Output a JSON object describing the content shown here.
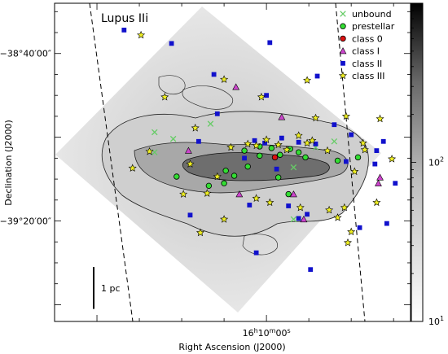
{
  "chart_data": {
    "type": "scatter",
    "title": "Lupus IIi",
    "xlabel": "Right Ascension (J2000)",
    "ylabel": "Declination (J2000)",
    "x_ticks": [
      {
        "label": "16h10m00s",
        "ra_min": 10.0
      }
    ],
    "y_ticks": [
      {
        "label": "−38°40′00″",
        "dec_arcmin": -40
      },
      {
        "label": "−39°20′00″",
        "dec_arcmin": -80
      }
    ],
    "xlim_ra_min": [
      11.25,
      9.15
    ],
    "ylim_dec_arcmin": [
      -104,
      -28
    ],
    "colorbar": {
      "scale": "log",
      "range": [
        10,
        1000
      ],
      "ticks": [
        {
          "label": "10",
          "exp": "1",
          "value": 10
        },
        {
          "label": "10",
          "exp": "2",
          "value": 100
        }
      ],
      "colormap": "gray_reversed"
    },
    "scale_bar": {
      "label": "1 pc",
      "dec_arcmin_start": -91,
      "dec_arcmin_end": -101
    },
    "legend_position": "top-right",
    "series": [
      {
        "name": "unbound",
        "marker": "x",
        "color": "#66cc66",
        "points": [
          [
            10.66,
            -58.8
          ],
          [
            10.55,
            -60.4
          ],
          [
            10.33,
            -56.8
          ],
          [
            10.66,
            -63.6
          ],
          [
            9.84,
            -67.2
          ],
          [
            9.71,
            -62.4
          ],
          [
            9.84,
            -79.6
          ],
          [
            9.6,
            -61.0
          ]
        ]
      },
      {
        "name": "prestellar",
        "marker": "circle",
        "color": "#33dd33",
        "points": [
          [
            10.13,
            -63.2
          ],
          [
            10.04,
            -62.2
          ],
          [
            9.97,
            -62.6
          ],
          [
            9.92,
            -64.2
          ],
          [
            9.86,
            -62.8
          ],
          [
            9.81,
            -63.6
          ],
          [
            9.77,
            -64.8
          ],
          [
            10.04,
            -64.4
          ],
          [
            10.11,
            -67.0
          ],
          [
            10.24,
            -68.0
          ],
          [
            10.19,
            -69.2
          ],
          [
            10.25,
            -71.0
          ],
          [
            10.34,
            -71.6
          ],
          [
            10.53,
            -69.4
          ],
          [
            9.58,
            -65.6
          ],
          [
            9.46,
            -64.8
          ],
          [
            9.93,
            -69.6
          ],
          [
            9.87,
            -73.6
          ]
        ]
      },
      {
        "name": "class 0",
        "marker": "circle",
        "color": "#dd1111",
        "points": [
          [
            9.95,
            -64.8
          ]
        ]
      },
      {
        "name": "class I",
        "marker": "triangle",
        "color": "#cc44cc",
        "points": [
          [
            10.18,
            -48.0
          ],
          [
            10.46,
            -63.2
          ],
          [
            10.16,
            -73.6
          ],
          [
            9.84,
            -73.6
          ],
          [
            9.78,
            -79.6
          ],
          [
            9.33,
            -69.6
          ],
          [
            9.34,
            -71.0
          ],
          [
            9.91,
            -55.2
          ]
        ]
      },
      {
        "name": "class II",
        "marker": "square",
        "color": "#1111cc",
        "points": [
          [
            10.84,
            -34.4
          ],
          [
            10.56,
            -37.6
          ],
          [
            10.31,
            -45.0
          ],
          [
            9.98,
            -37.4
          ],
          [
            9.7,
            -45.4
          ],
          [
            10.29,
            -54.4
          ],
          [
            10.0,
            -50.0
          ],
          [
            10.4,
            -61.0
          ],
          [
            10.13,
            -65.0
          ],
          [
            10.07,
            -60.8
          ],
          [
            10.01,
            -61.4
          ],
          [
            9.91,
            -60.2
          ],
          [
            9.81,
            -61.2
          ],
          [
            9.71,
            -61.6
          ],
          [
            9.94,
            -67.6
          ],
          [
            9.6,
            -57.0
          ],
          [
            9.5,
            -59.4
          ],
          [
            9.31,
            -61.0
          ],
          [
            9.35,
            -63.2
          ],
          [
            9.53,
            -65.8
          ],
          [
            9.36,
            -66.4
          ],
          [
            9.87,
            -76.4
          ],
          [
            9.76,
            -78.4
          ],
          [
            9.81,
            -79.4
          ],
          [
            10.45,
            -78.6
          ],
          [
            10.1,
            -76.2
          ],
          [
            10.06,
            -87.6
          ],
          [
            9.74,
            -91.6
          ],
          [
            9.29,
            -80.6
          ],
          [
            9.24,
            -71.0
          ],
          [
            9.45,
            -81.6
          ]
        ]
      },
      {
        "name": "class III",
        "marker": "star",
        "color": "#eeee22",
        "points": [
          [
            10.74,
            -35.6
          ],
          [
            10.25,
            -46.2
          ],
          [
            10.03,
            -50.4
          ],
          [
            9.76,
            -46.4
          ],
          [
            10.6,
            -50.4
          ],
          [
            10.42,
            -57.8
          ],
          [
            10.69,
            -63.4
          ],
          [
            10.79,
            -67.4
          ],
          [
            10.45,
            -66.4
          ],
          [
            10.29,
            -69.4
          ],
          [
            10.21,
            -62.4
          ],
          [
            10.11,
            -61.6
          ],
          [
            10.06,
            -62.0
          ],
          [
            10.0,
            -60.6
          ],
          [
            9.93,
            -61.8
          ],
          [
            9.88,
            -63.0
          ],
          [
            9.76,
            -61.4
          ],
          [
            9.64,
            -63.2
          ],
          [
            9.53,
            -55.0
          ],
          [
            9.71,
            -55.4
          ],
          [
            9.42,
            -63.0
          ],
          [
            9.48,
            -68.2
          ],
          [
            9.33,
            -55.6
          ],
          [
            10.35,
            -73.4
          ],
          [
            10.49,
            -73.6
          ],
          [
            10.06,
            -74.6
          ],
          [
            9.98,
            -75.6
          ],
          [
            10.25,
            -79.6
          ],
          [
            9.8,
            -76.8
          ],
          [
            9.63,
            -77.4
          ],
          [
            9.58,
            -79.2
          ],
          [
            9.54,
            -76.8
          ],
          [
            9.5,
            -82.6
          ],
          [
            9.52,
            -85.2
          ],
          [
            9.26,
            -65.2
          ],
          [
            9.35,
            -75.6
          ],
          [
            10.39,
            -82.8
          ],
          [
            9.43,
            -61.4
          ],
          [
            9.73,
            -60.8
          ],
          [
            9.81,
            -59.6
          ]
        ]
      }
    ]
  }
}
